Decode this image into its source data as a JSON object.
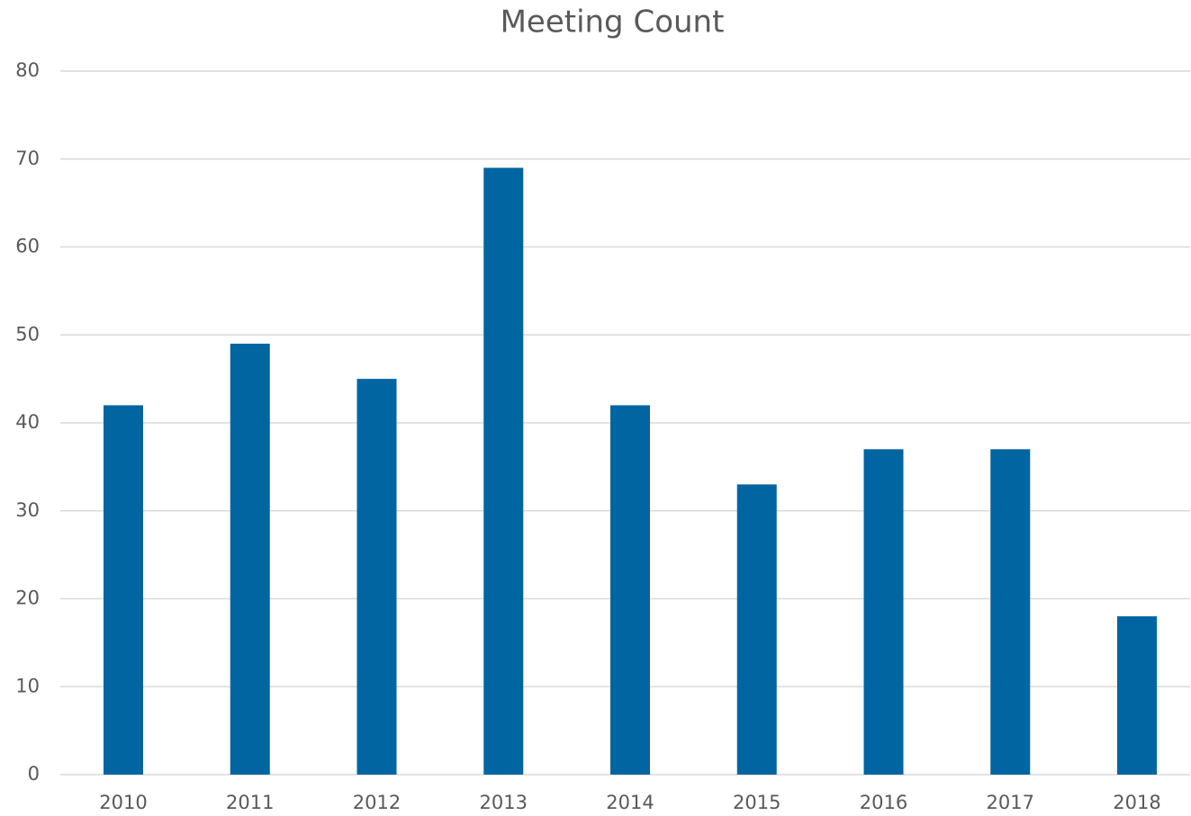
{
  "chart_data": {
    "type": "bar",
    "title": "Meeting Count",
    "categories": [
      "2010",
      "2011",
      "2012",
      "2013",
      "2014",
      "2015",
      "2016",
      "2017",
      "2018"
    ],
    "values": [
      42,
      49,
      45,
      69,
      42,
      33,
      37,
      37,
      18
    ],
    "color": "#0065a0",
    "ylim": [
      0,
      80
    ],
    "yticks": [
      0,
      10,
      20,
      30,
      40,
      50,
      60,
      70,
      80
    ],
    "grid": true
  }
}
